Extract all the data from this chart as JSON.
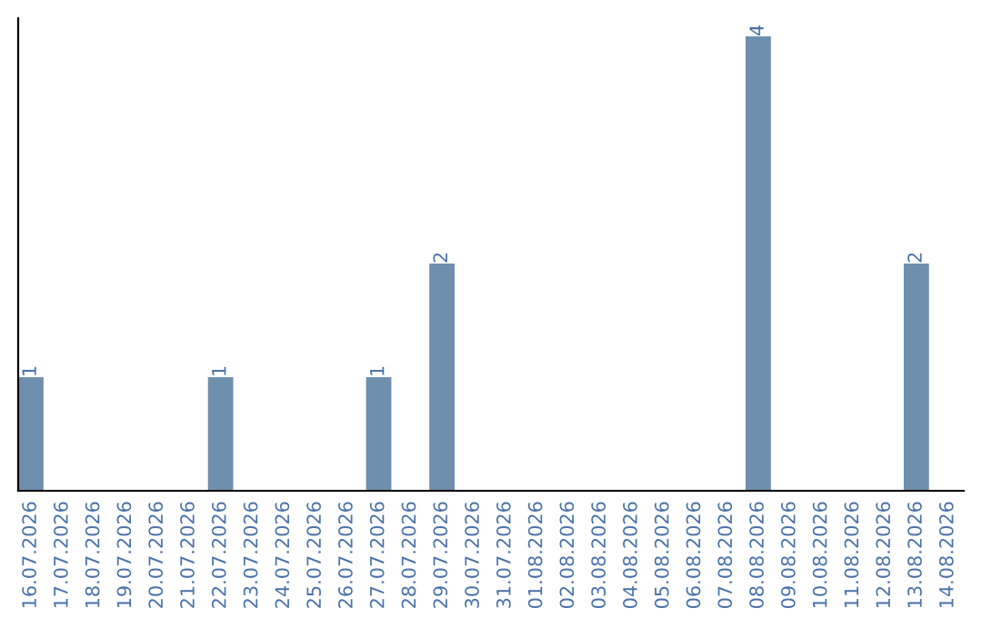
{
  "chart_data": {
    "type": "bar",
    "categories": [
      "16.07.2026",
      "17.07.2026",
      "18.07.2026",
      "19.07.2026",
      "20.07.2026",
      "21.07.2026",
      "22.07.2026",
      "23.07.2026",
      "24.07.2026",
      "25.07.2026",
      "26.07.2026",
      "27.07.2026",
      "28.07.2026",
      "29.07.2026",
      "30.07.2026",
      "31.07.2026",
      "01.08.2026",
      "02.08.2026",
      "03.08.2026",
      "04.08.2026",
      "05.08.2026",
      "06.08.2026",
      "07.08.2026",
      "08.08.2026",
      "09.08.2026",
      "10.08.2026",
      "11.08.2026",
      "12.08.2026",
      "13.08.2026",
      "14.08.2026"
    ],
    "values": [
      1,
      0,
      0,
      0,
      0,
      0,
      1,
      0,
      0,
      0,
      0,
      1,
      0,
      2,
      0,
      0,
      0,
      0,
      0,
      0,
      0,
      0,
      0,
      4,
      0,
      0,
      0,
      0,
      2,
      0
    ],
    "value_labels": [
      "1",
      null,
      null,
      null,
      null,
      null,
      "1",
      null,
      null,
      null,
      null,
      "1",
      null,
      "2",
      null,
      null,
      null,
      null,
      null,
      null,
      null,
      null,
      null,
      "4",
      null,
      null,
      null,
      null,
      "2",
      null
    ],
    "color": "#6f8fae",
    "tick_labels": "x",
    "grid": false,
    "legend": false
  }
}
